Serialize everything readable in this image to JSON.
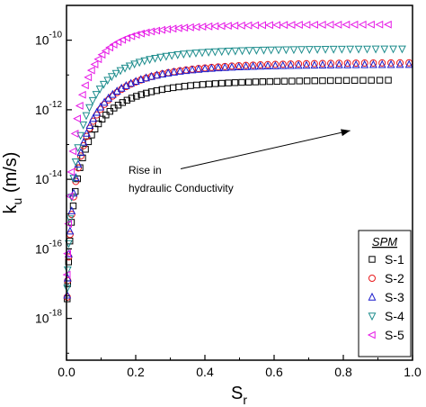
{
  "chart_data": {
    "type": "scatter",
    "title": "",
    "xlabel": {
      "main": "S",
      "sub": "r"
    },
    "ylabel": {
      "main": "k",
      "sub": "u",
      "unit": " (m/s)"
    },
    "xlim": [
      0,
      1.0
    ],
    "ylim_log10": [
      -19.2,
      -9.0
    ],
    "scale_y": "log",
    "grid": false,
    "x_ticks": [
      {
        "value": 0.0,
        "label": "0.0"
      },
      {
        "value": 0.2,
        "label": "0.2"
      },
      {
        "value": 0.4,
        "label": "0.4"
      },
      {
        "value": 0.6,
        "label": "0.6"
      },
      {
        "value": 0.8,
        "label": "0.8"
      },
      {
        "value": 1.0,
        "label": "1.0"
      }
    ],
    "y_ticks": [
      {
        "exp": -18,
        "base": "10",
        "sup": "-18"
      },
      {
        "exp": -16,
        "base": "10",
        "sup": "-16"
      },
      {
        "exp": -14,
        "base": "10",
        "sup": "-14"
      },
      {
        "exp": -12,
        "base": "10",
        "sup": "-12"
      },
      {
        "exp": -10,
        "base": "10",
        "sup": "-10"
      }
    ],
    "legend": {
      "title": "SPM",
      "placement": "bottom-right"
    },
    "annotation": {
      "lines": [
        "Rise in",
        "hydraulic Conductivity"
      ],
      "arrow_from": [
        0.33,
        -13.7
      ],
      "arrow_to": [
        0.82,
        -12.6
      ]
    },
    "series": [
      {
        "name": "S-1",
        "marker": "square",
        "color": "#000000",
        "x_max": 0.93,
        "y_log10_end": -11.15,
        "shape_k": 6.5
      },
      {
        "name": "S-2",
        "marker": "circle",
        "color": "#e8191c",
        "x_max": 0.99,
        "y_log10_end": -10.65,
        "shape_k": 6.5
      },
      {
        "name": "S-3",
        "marker": "triangle-up",
        "color": "#1c1ccc",
        "x_max": 0.99,
        "y_log10_end": -10.7,
        "shape_k": 6.8
      },
      {
        "name": "S-4",
        "marker": "triangle-down",
        "color": "#1c8c8c",
        "x_max": 0.97,
        "y_log10_end": -10.25,
        "shape_k": 7.2
      },
      {
        "name": "S-5",
        "marker": "triangle-left",
        "color": "#e619e6",
        "x_max": 0.93,
        "y_log10_end": -9.55,
        "shape_k": 8.0
      }
    ]
  }
}
